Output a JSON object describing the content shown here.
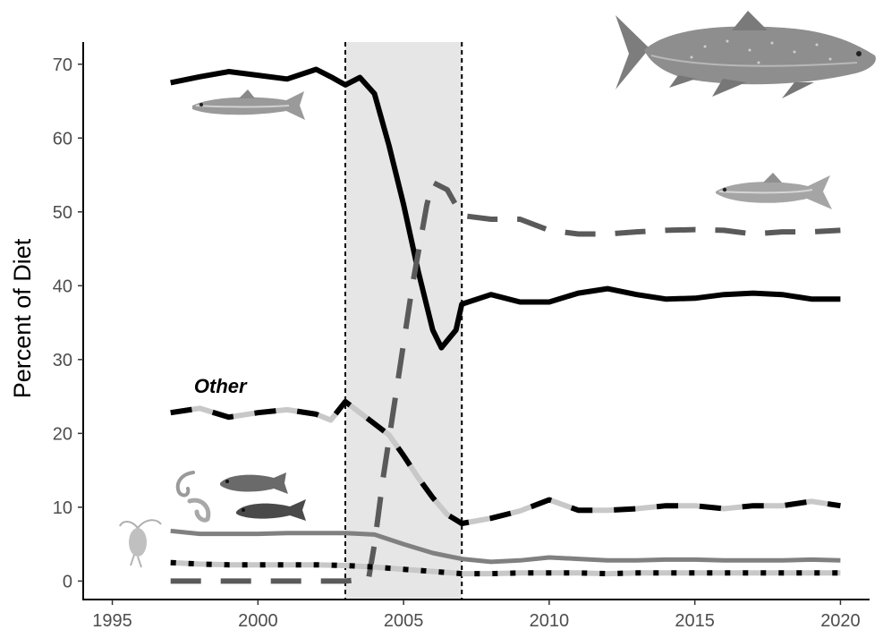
{
  "chart_data": {
    "type": "line",
    "title": "",
    "xlabel": "",
    "ylabel": "Percent of Diet",
    "xlim": [
      1994,
      2021
    ],
    "ylim": [
      -2.5,
      73
    ],
    "x_ticks": [
      1995,
      2000,
      2005,
      2010,
      2015,
      2020
    ],
    "y_ticks": [
      0,
      10,
      20,
      30,
      40,
      50,
      60,
      70
    ],
    "grid": false,
    "legend": "none",
    "shaded_period": {
      "x_start": 2003,
      "x_end": 2007,
      "color": "#e6e6e6"
    },
    "annotations": [
      {
        "text": "Other",
        "x": 1998.0,
        "y": 26.2
      }
    ],
    "series": [
      {
        "style": "solid",
        "color": "#000000",
        "x": [
          1997.0,
          1998.0,
          1999.0,
          2000.0,
          2001.0,
          2002.0,
          2002.5,
          2003.0,
          2003.5,
          2004.0,
          2004.5,
          2005.0,
          2005.5,
          2006.0,
          2006.3,
          2006.8,
          2007.0,
          2008.0,
          2009.0,
          2010.0,
          2011.0,
          2012.0,
          2013.0,
          2014.0,
          2015.0,
          2016.0,
          2017.0,
          2018.0,
          2019.0,
          2020.0
        ],
        "y": [
          67.5,
          68.3,
          69.0,
          68.5,
          68.0,
          69.3,
          68.3,
          67.2,
          68.2,
          66.0,
          59.0,
          51.0,
          42.0,
          34.0,
          31.6,
          34.0,
          37.5,
          38.8,
          37.8,
          37.8,
          39.0,
          39.6,
          38.8,
          38.2,
          38.3,
          38.8,
          39.0,
          38.8,
          38.2,
          38.2
        ]
      },
      {
        "style": "long-dash",
        "color": "#5a5a5a",
        "x": [
          1997.0,
          1999.0,
          2001.0,
          2003.0,
          2003.8,
          2004.0,
          2004.3,
          2004.8,
          2005.3,
          2005.8,
          2006.0,
          2006.5,
          2007.0,
          2008.0,
          2009.0,
          2010.0,
          2011.0,
          2012.0,
          2013.0,
          2014.0,
          2015.0,
          2016.0,
          2017.0,
          2018.0,
          2019.0,
          2020.0
        ],
        "y": [
          0.0,
          0.0,
          0.0,
          0.0,
          0.3,
          5.0,
          14.0,
          27.0,
          40.0,
          51.0,
          54.0,
          53.0,
          49.5,
          49.0,
          49.0,
          47.5,
          47.0,
          47.0,
          47.3,
          47.5,
          47.6,
          47.5,
          47.0,
          47.3,
          47.3,
          47.5
        ]
      },
      {
        "style": "two-tone-dash",
        "colors": [
          "#000000",
          "#c8c8c8"
        ],
        "x": [
          1997.0,
          1998.0,
          1999.0,
          2000.0,
          2001.0,
          2002.0,
          2002.5,
          2003.0,
          2003.5,
          2004.0,
          2004.5,
          2005.0,
          2005.5,
          2006.0,
          2006.5,
          2007.0,
          2008.0,
          2009.0,
          2010.0,
          2011.0,
          2012.0,
          2013.0,
          2014.0,
          2015.0,
          2016.0,
          2017.0,
          2018.0,
          2019.0,
          2020.0
        ],
        "y": [
          22.8,
          23.4,
          22.2,
          22.8,
          23.2,
          22.6,
          21.8,
          24.3,
          22.8,
          21.3,
          19.8,
          17.0,
          14.0,
          11.3,
          9.0,
          7.8,
          8.5,
          9.5,
          11.0,
          9.6,
          9.6,
          9.8,
          10.2,
          10.2,
          9.8,
          10.2,
          10.2,
          10.8,
          10.2
        ]
      },
      {
        "style": "solid",
        "color": "#808080",
        "x": [
          1997.0,
          1998.0,
          1999.0,
          2000.0,
          2001.0,
          2002.0,
          2003.0,
          2004.0,
          2005.0,
          2006.0,
          2007.0,
          2008.0,
          2009.0,
          2010.0,
          2011.0,
          2012.0,
          2013.0,
          2014.0,
          2015.0,
          2016.0,
          2017.0,
          2018.0,
          2019.0,
          2020.0
        ],
        "y": [
          6.8,
          6.4,
          6.4,
          6.4,
          6.5,
          6.5,
          6.5,
          6.3,
          5.0,
          3.8,
          3.0,
          2.6,
          2.8,
          3.2,
          3.0,
          2.8,
          2.8,
          2.9,
          2.9,
          2.8,
          2.8,
          2.8,
          2.9,
          2.8
        ]
      },
      {
        "style": "dotted-on-grey",
        "colors": [
          "#c8c8c8",
          "#000000"
        ],
        "x": [
          1997.0,
          1998.0,
          1999.0,
          2000.0,
          2001.0,
          2002.0,
          2003.0,
          2004.0,
          2005.0,
          2006.0,
          2007.0,
          2008.0,
          2009.0,
          2010.0,
          2011.0,
          2012.0,
          2013.0,
          2014.0,
          2015.0,
          2016.0,
          2017.0,
          2018.0,
          2019.0,
          2020.0
        ],
        "y": [
          2.5,
          2.3,
          2.2,
          2.2,
          2.2,
          2.2,
          2.1,
          1.9,
          1.6,
          1.3,
          1.0,
          1.0,
          1.1,
          1.1,
          1.1,
          1.0,
          1.1,
          1.1,
          1.1,
          1.1,
          1.1,
          1.1,
          1.1,
          1.1
        ]
      }
    ],
    "illustrations": [
      {
        "icon": "lake-trout-fish-icon",
        "color": "#8c8c8c"
      },
      {
        "icon": "rainbow-smelt-fish-icon",
        "color": "#9a9a9a"
      },
      {
        "icon": "alewife-fish-icon",
        "color": "#a5a5a5"
      },
      {
        "icon": "goby-fish-icon",
        "color": "#5a5a5a"
      },
      {
        "icon": "shrimp-icon",
        "color": "#9a9a9a"
      },
      {
        "icon": "zooplankton-icon",
        "color": "#b0b0b0"
      }
    ]
  }
}
